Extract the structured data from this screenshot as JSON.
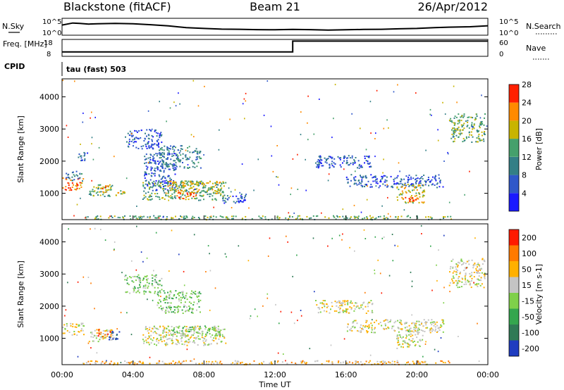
{
  "header": {
    "station": "Blackstone (fitACF)",
    "beam": "Beam 21",
    "date": "26/Apr/2012"
  },
  "chart_data": [
    {
      "type": "line",
      "panel": "noise",
      "series": [
        {
          "name": "N.Sky",
          "style": "solid"
        },
        {
          "name": "N.Search",
          "style": "dotted"
        }
      ],
      "yticks": [
        "10^5",
        "10^0"
      ],
      "yticks_right": [
        "10^5",
        "10^0"
      ],
      "x": [
        0.0,
        0.6,
        1.0,
        1.5,
        2.0,
        3.0,
        4.0,
        5.0,
        6.0,
        7.0,
        8.0,
        9.0,
        10.0,
        11.0,
        12.0,
        13.0,
        14.0,
        15.0,
        16.0,
        17.0,
        18.0,
        19.0,
        20.0,
        21.0,
        22.0,
        23.0,
        24.0
      ],
      "values": [
        0.6,
        0.72,
        0.7,
        0.66,
        0.68,
        0.7,
        0.68,
        0.62,
        0.55,
        0.45,
        0.4,
        0.36,
        0.35,
        0.33,
        0.32,
        0.34,
        0.33,
        0.3,
        0.32,
        0.34,
        0.35,
        0.38,
        0.4,
        0.45,
        0.48,
        0.5,
        0.56
      ],
      "ylim": [
        0,
        1
      ]
    },
    {
      "type": "line",
      "panel": "frequency",
      "ylabel": "Freq. [MHz]",
      "ylabel_right": "Nave",
      "yticks": [
        "18",
        "8"
      ],
      "yticks_right": [
        "60",
        "0"
      ],
      "x": [
        0.0,
        13.0,
        13.0,
        24.0
      ],
      "values": [
        10.6,
        10.6,
        17.0,
        17.0
      ],
      "ylim": [
        8,
        18
      ]
    },
    {
      "type": "table",
      "panel": "cpid",
      "label": "CPID",
      "annotation": "tau (fast) 503"
    },
    {
      "type": "heatmap",
      "panel": "power",
      "ylabel": "Slant Range [km]",
      "yticks": [
        "1000",
        "2000",
        "3000",
        "4000"
      ],
      "ylim": [
        180,
        4560
      ],
      "colorbar": {
        "label": "Power [dB]",
        "ticks": [
          "4",
          "8",
          "12",
          "16",
          "20",
          "24",
          "28"
        ],
        "colors": [
          "#1a1aff",
          "#2f58c9",
          "#337f86",
          "#45a06c",
          "#c8b400",
          "#ff8a00",
          "#ff2000"
        ]
      },
      "regions": [
        {
          "t": [
            0.0,
            1.2
          ],
          "r": [
            1100,
            1500
          ],
          "level": 5
        },
        {
          "t": [
            0.2,
            1.2
          ],
          "r": [
            1400,
            1700
          ],
          "level": 2
        },
        {
          "t": [
            0.8,
            1.4
          ],
          "r": [
            2000,
            2300
          ],
          "level": 1
        },
        {
          "t": [
            1.5,
            2.9
          ],
          "r": [
            900,
            1300
          ],
          "level": 3
        },
        {
          "t": [
            2.0,
            2.6
          ],
          "r": [
            1050,
            1250
          ],
          "level": 5
        },
        {
          "t": [
            3.0,
            3.5
          ],
          "r": [
            950,
            1100
          ],
          "level": 4
        },
        {
          "t": [
            3.5,
            5.6
          ],
          "r": [
            2400,
            3000
          ],
          "level": 1
        },
        {
          "t": [
            4.6,
            6.4
          ],
          "r": [
            1100,
            2300
          ],
          "level": 1
        },
        {
          "t": [
            5.3,
            7.8
          ],
          "r": [
            1800,
            2500
          ],
          "level": 2
        },
        {
          "t": [
            4.5,
            9.2
          ],
          "r": [
            800,
            1400
          ],
          "level": 3
        },
        {
          "t": [
            5.8,
            9.0
          ],
          "r": [
            1000,
            1400
          ],
          "level": 4
        },
        {
          "t": [
            6.4,
            7.4
          ],
          "r": [
            850,
            1050
          ],
          "level": 6
        },
        {
          "t": [
            9.0,
            10.5
          ],
          "r": [
            700,
            1000
          ],
          "level": 1
        },
        {
          "t": [
            14.2,
            17.5
          ],
          "r": [
            1800,
            2200
          ],
          "level": 1
        },
        {
          "t": [
            16.0,
            21.5
          ],
          "r": [
            1200,
            1600
          ],
          "level": 1
        },
        {
          "t": [
            18.8,
            20.4
          ],
          "r": [
            700,
            1300
          ],
          "level": 4
        },
        {
          "t": [
            19.3,
            20.0
          ],
          "r": [
            750,
            950
          ],
          "level": 6
        },
        {
          "t": [
            21.8,
            23.8
          ],
          "r": [
            2600,
            3500
          ],
          "level": 3
        },
        {
          "t": [
            1.0,
            22.0
          ],
          "r": [
            200,
            320
          ],
          "level": 3
        }
      ]
    },
    {
      "type": "heatmap",
      "panel": "velocity",
      "ylabel": "Slant Range [km]",
      "yticks": [
        "1000",
        "2000",
        "3000",
        "4000"
      ],
      "ylim": [
        180,
        4560
      ],
      "xlabel": "Time UT",
      "xticks": [
        "00:00",
        "04:00",
        "08:00",
        "12:00",
        "16:00",
        "20:00",
        "00:00"
      ],
      "colorbar": {
        "label": "Velocity [m s-1]",
        "ticks": [
          "200",
          "100",
          "50",
          "15",
          "-15",
          "-50",
          "-100",
          "-200"
        ],
        "colors": [
          "#1f3cc0",
          "#2f7a55",
          "#34a64e",
          "#7fd04a",
          "#c4c4c4",
          "#ffb000",
          "#ff7a00",
          "#ff1a00"
        ]
      },
      "regions": [
        {
          "t": [
            0.0,
            1.2
          ],
          "r": [
            1100,
            1500
          ],
          "level": 4
        },
        {
          "t": [
            1.5,
            2.9
          ],
          "r": [
            900,
            1300
          ],
          "level": 4
        },
        {
          "t": [
            2.0,
            2.8
          ],
          "r": [
            1000,
            1300
          ],
          "level": 6
        },
        {
          "t": [
            2.6,
            3.2
          ],
          "r": [
            950,
            1250
          ],
          "level": 0
        },
        {
          "t": [
            3.5,
            5.6
          ],
          "r": [
            2400,
            3000
          ],
          "level": 3
        },
        {
          "t": [
            5.3,
            7.8
          ],
          "r": [
            1800,
            2500
          ],
          "level": 3
        },
        {
          "t": [
            4.5,
            9.2
          ],
          "r": [
            800,
            1400
          ],
          "level": 4
        },
        {
          "t": [
            5.8,
            9.0
          ],
          "r": [
            1100,
            1400
          ],
          "level": 3
        },
        {
          "t": [
            14.2,
            17.5
          ],
          "r": [
            1800,
            2200
          ],
          "level": 4
        },
        {
          "t": [
            16.0,
            21.5
          ],
          "r": [
            1200,
            1600
          ],
          "level": 4
        },
        {
          "t": [
            18.8,
            20.4
          ],
          "r": [
            700,
            1300
          ],
          "level": 4
        },
        {
          "t": [
            21.8,
            23.8
          ],
          "r": [
            2600,
            3500
          ],
          "level": 4
        },
        {
          "t": [
            1.0,
            22.0
          ],
          "r": [
            200,
            320
          ],
          "level": 5
        }
      ]
    }
  ]
}
